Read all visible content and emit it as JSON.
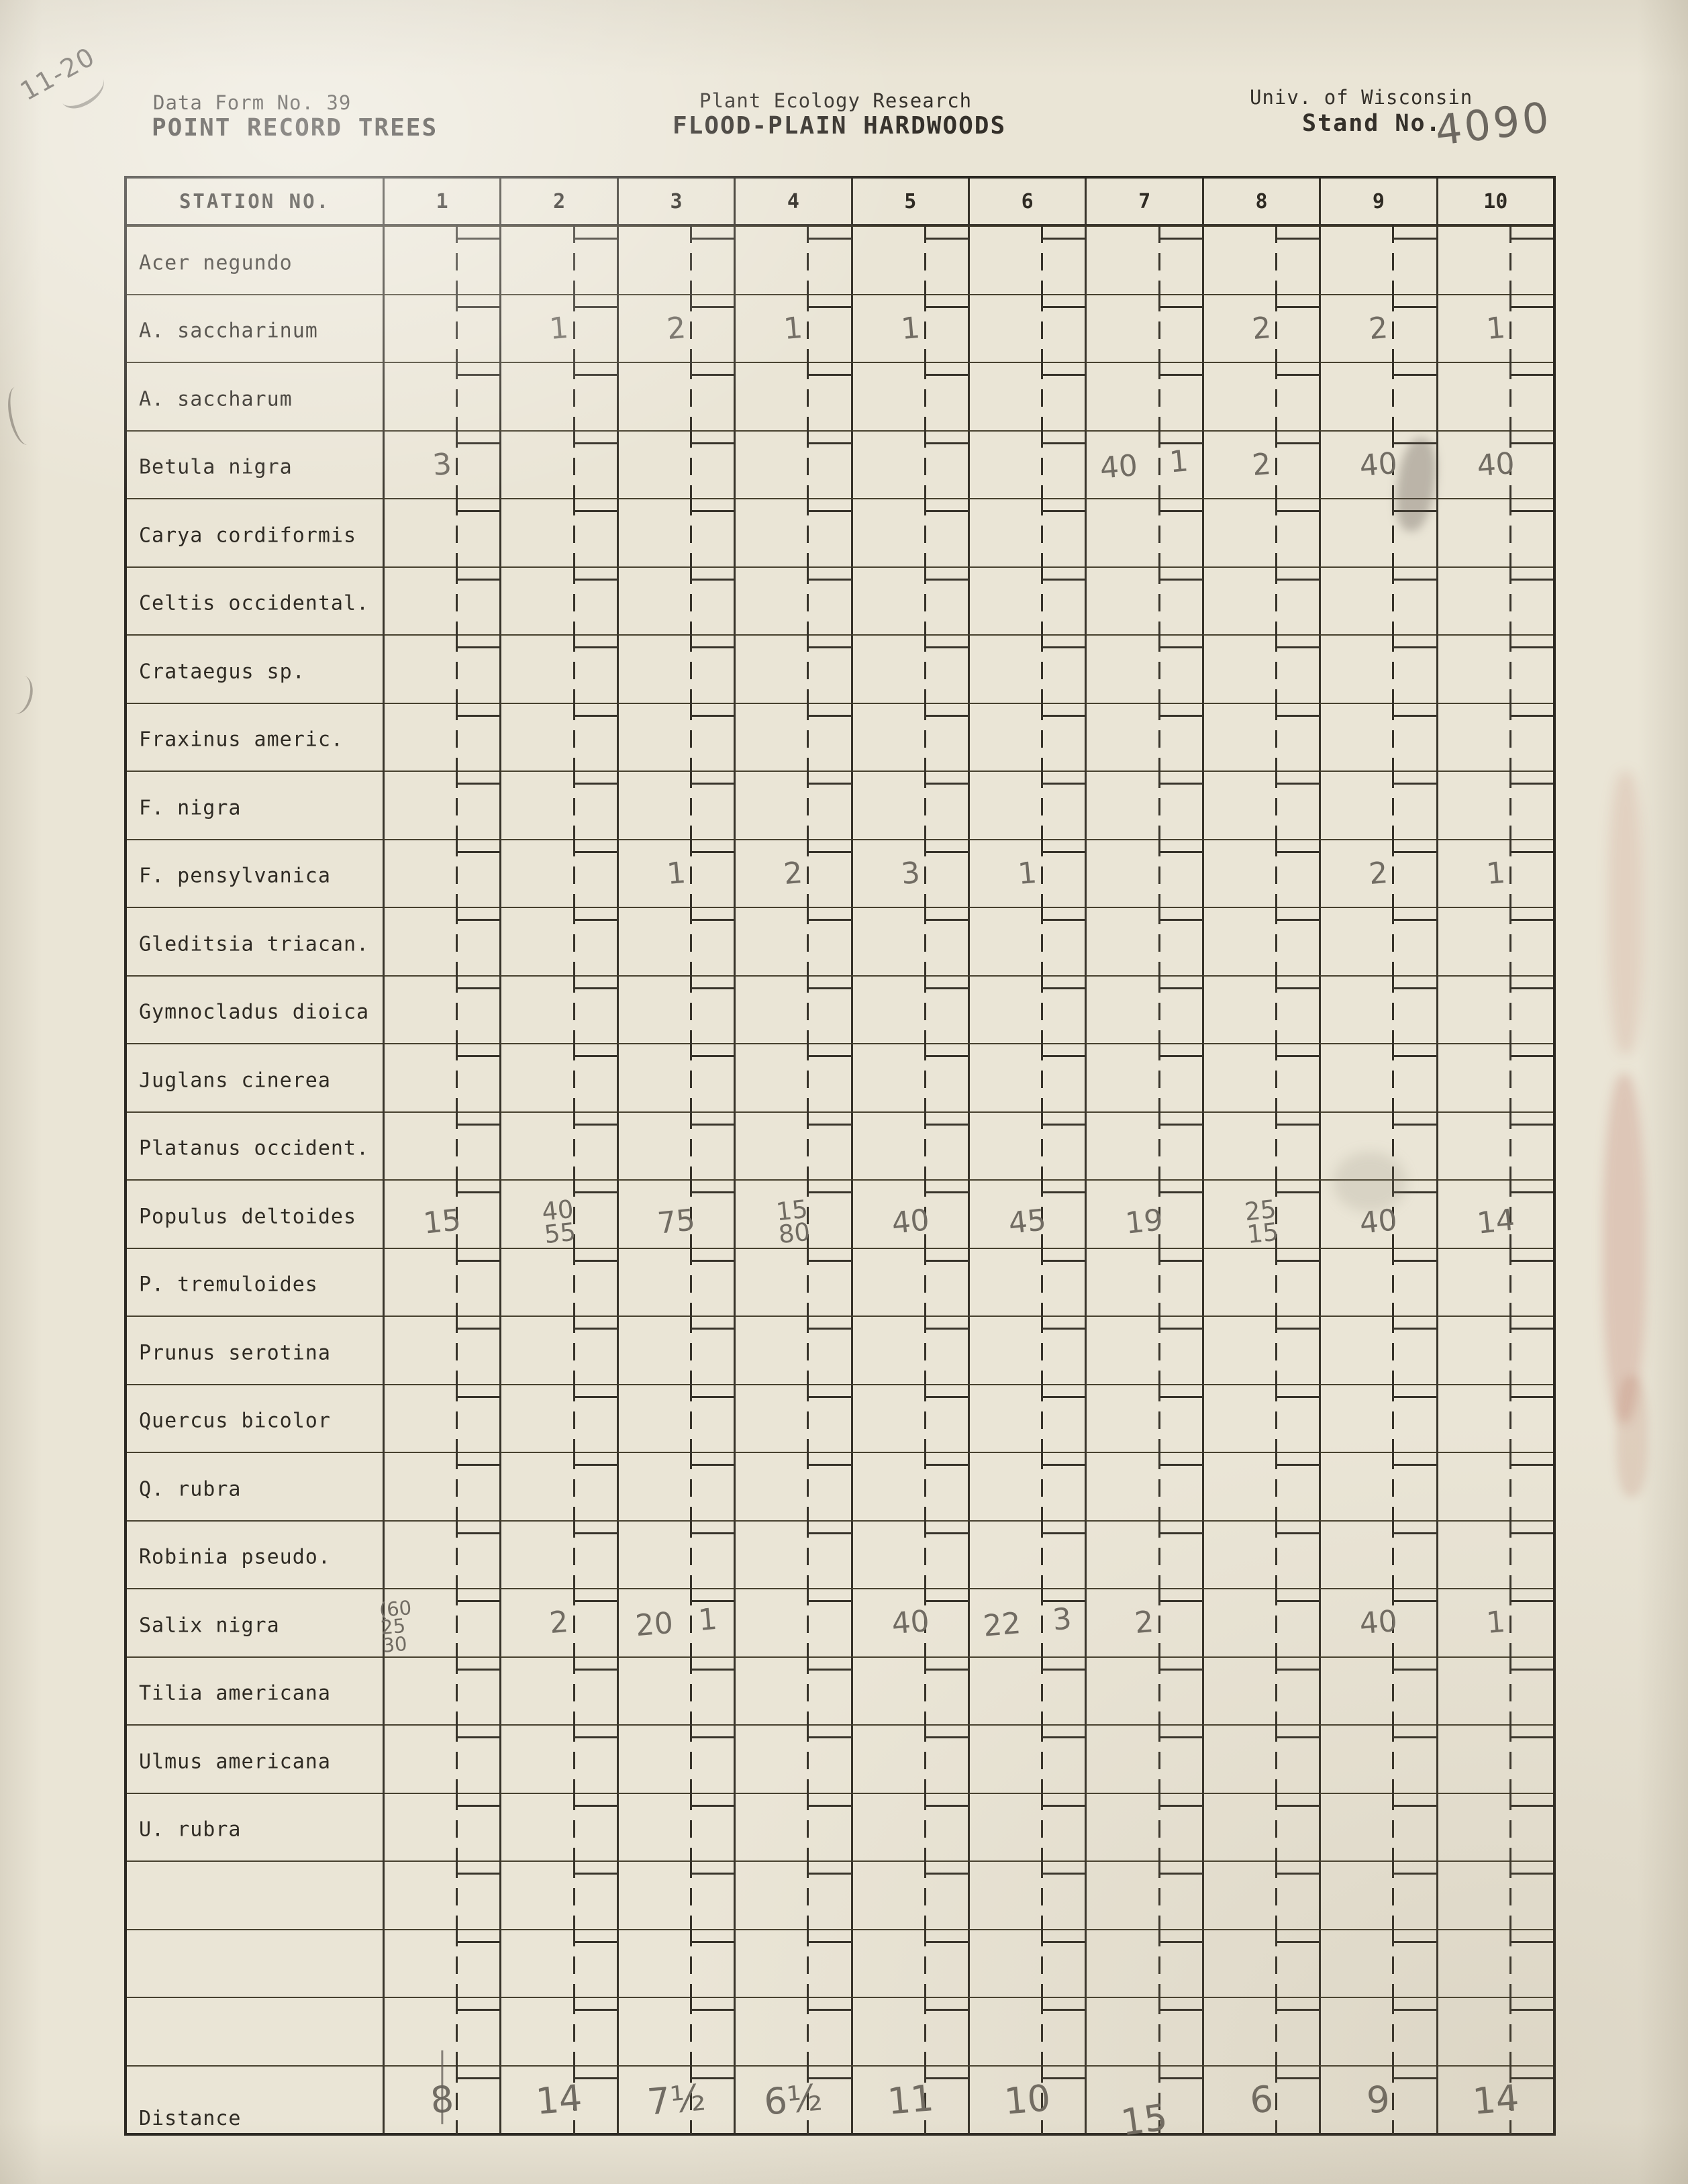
{
  "page": {
    "corner_note": "11-20",
    "header": {
      "form_no": "Data Form No. 39",
      "form_title": "POINT RECORD TREES",
      "org": "Plant Ecology Research",
      "subject": "FLOOD-PLAIN HARDWOODS",
      "institution": "Univ. of Wisconsin",
      "stand_label": "Stand No.",
      "stand_value": "4090"
    }
  },
  "table": {
    "station_label": "STATION NO.",
    "stations": [
      "1",
      "2",
      "3",
      "4",
      "5",
      "6",
      "7",
      "8",
      "9",
      "10"
    ],
    "rows": [
      {
        "species": "Acer negundo",
        "cells": [
          "",
          "",
          "",
          "",
          "",
          "",
          "",
          "",
          "",
          ""
        ]
      },
      {
        "species": "A. saccharinum",
        "cells": [
          "",
          "1",
          "2",
          "1",
          "1",
          "",
          "",
          "2",
          "2",
          "1"
        ]
      },
      {
        "species": "A. saccharum",
        "cells": [
          "",
          "",
          "",
          "",
          "",
          "",
          "",
          "",
          "",
          ""
        ]
      },
      {
        "species": "Betula nigra",
        "cells": [
          "3",
          "",
          "",
          "",
          "",
          "",
          "40 1",
          "2",
          "40",
          "40"
        ]
      },
      {
        "species": "Carya cordiformis",
        "cells": [
          "",
          "",
          "",
          "",
          "",
          "",
          "",
          "",
          "",
          ""
        ]
      },
      {
        "species": "Celtis occidental.",
        "cells": [
          "",
          "",
          "",
          "",
          "",
          "",
          "",
          "",
          "",
          ""
        ]
      },
      {
        "species": "Crataegus sp.",
        "cells": [
          "",
          "",
          "",
          "",
          "",
          "",
          "",
          "",
          "",
          ""
        ]
      },
      {
        "species": "Fraxinus americ.",
        "cells": [
          "",
          "",
          "",
          "",
          "",
          "",
          "",
          "",
          "",
          ""
        ]
      },
      {
        "species": "F. nigra",
        "cells": [
          "",
          "",
          "",
          "",
          "",
          "",
          "",
          "",
          "",
          ""
        ]
      },
      {
        "species": "F. pensylvanica",
        "cells": [
          "",
          "",
          "1",
          "2",
          "3",
          "1",
          "",
          "",
          "2",
          "1"
        ]
      },
      {
        "species": "Gleditsia triacan.",
        "cells": [
          "",
          "",
          "",
          "",
          "",
          "",
          "",
          "",
          "",
          ""
        ]
      },
      {
        "species": "Gymnocladus dioica",
        "cells": [
          "",
          "",
          "",
          "",
          "",
          "",
          "",
          "",
          "",
          ""
        ]
      },
      {
        "species": "Juglans cinerea",
        "cells": [
          "",
          "",
          "",
          "",
          "",
          "",
          "",
          "",
          "",
          ""
        ]
      },
      {
        "species": "Platanus occident.",
        "cells": [
          "",
          "",
          "",
          "",
          "",
          "",
          "",
          "",
          "",
          ""
        ]
      },
      {
        "species": "Populus deltoides",
        "cells": [
          "15",
          "40\n55",
          "75",
          "15\n80",
          "40",
          "45",
          "19",
          "25\n15",
          "40",
          "14"
        ]
      },
      {
        "species": "P. tremuloides",
        "cells": [
          "",
          "",
          "",
          "",
          "",
          "",
          "",
          "",
          "",
          ""
        ]
      },
      {
        "species": "Prunus serotina",
        "cells": [
          "",
          "",
          "",
          "",
          "",
          "",
          "",
          "",
          "",
          ""
        ]
      },
      {
        "species": "Quercus bicolor",
        "cells": [
          "",
          "",
          "",
          "",
          "",
          "",
          "",
          "",
          "",
          ""
        ]
      },
      {
        "species": "Q. rubra",
        "cells": [
          "",
          "",
          "",
          "",
          "",
          "",
          "",
          "",
          "",
          ""
        ]
      },
      {
        "species": "Robinia pseudo.",
        "cells": [
          "",
          "",
          "",
          "",
          "",
          "",
          "",
          "",
          "",
          ""
        ]
      },
      {
        "species": "Salix nigra",
        "cells": [
          "(60\n25\n30",
          "2",
          "20 1",
          "",
          "40",
          "22 3",
          "2",
          "",
          "40",
          "1"
        ]
      },
      {
        "species": "Tilia americana",
        "cells": [
          "",
          "",
          "",
          "",
          "",
          "",
          "",
          "",
          "",
          ""
        ]
      },
      {
        "species": "Ulmus americana",
        "cells": [
          "",
          "",
          "",
          "",
          "",
          "",
          "",
          "",
          "",
          ""
        ]
      },
      {
        "species": "U. rubra",
        "cells": [
          "",
          "",
          "",
          "",
          "",
          "",
          "",
          "",
          "",
          ""
        ]
      },
      {
        "species": "",
        "cells": [
          "",
          "",
          "",
          "",
          "",
          "",
          "",
          "",
          "",
          ""
        ]
      },
      {
        "species": "",
        "cells": [
          "",
          "",
          "",
          "",
          "",
          "",
          "",
          "",
          "",
          ""
        ]
      },
      {
        "species": "",
        "cells": [
          "",
          "",
          "",
          "",
          "",
          "",
          "",
          "",
          "",
          ""
        ]
      },
      {
        "species": "Distance",
        "cells": [
          "8",
          "14",
          "7½",
          "6½",
          "11",
          "10",
          "15",
          "6",
          "9",
          "14"
        ]
      }
    ]
  },
  "colors": {
    "paper": "#eae5d6",
    "ink": "#2f2b24",
    "pencil": "#6d6860",
    "stain_red": "#a84c3a"
  }
}
